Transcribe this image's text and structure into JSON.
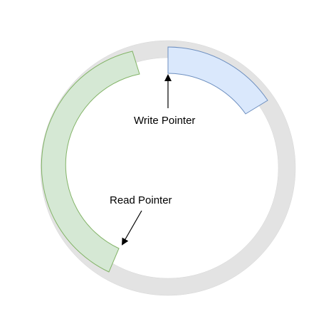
{
  "diagram": {
    "labels": {
      "write_pointer": "Write Pointer",
      "read_pointer": "Read Pointer"
    }
  },
  "colors": {
    "ring": "#e3e3e3",
    "ring_stroke": "#d6d6d6",
    "read_segment_fill": "#d5e8d4",
    "read_segment_stroke": "#82b366",
    "write_segment_fill": "#dae8fc",
    "write_segment_stroke": "#6c8ebf",
    "arrow": "#000000"
  }
}
